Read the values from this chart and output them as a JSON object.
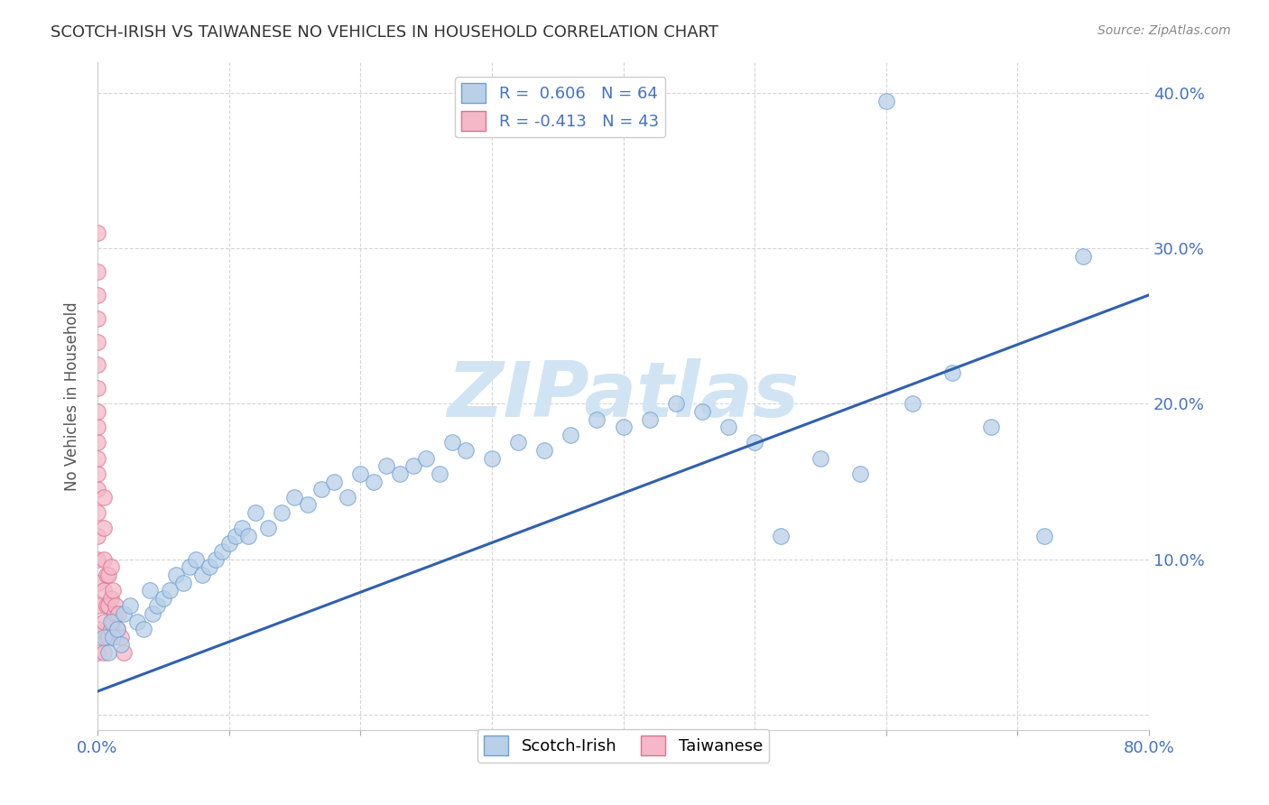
{
  "title": "SCOTCH-IRISH VS TAIWANESE NO VEHICLES IN HOUSEHOLD CORRELATION CHART",
  "source": "Source: ZipAtlas.com",
  "ylabel": "No Vehicles in Household",
  "xlim": [
    0.0,
    0.8
  ],
  "ylim": [
    -0.01,
    0.42
  ],
  "scotch_irish_r": 0.606,
  "scotch_irish_n": 64,
  "taiwanese_r": -0.413,
  "taiwanese_n": 43,
  "scotch_irish_color": "#b8d0e8",
  "scotch_irish_edge": "#6fa0d0",
  "taiwanese_color": "#f4b8c8",
  "taiwanese_edge": "#e07090",
  "trend_line_color": "#3060b0",
  "background_color": "#ffffff",
  "grid_color": "#cccccc",
  "tick_label_color": "#4472c4",
  "title_color": "#333333",
  "source_color": "#888888",
  "watermark_color": "#d0e4f4",
  "trend_x0": 0.0,
  "trend_y0": 0.015,
  "trend_x1": 0.8,
  "trend_y1": 0.27,
  "scotch_irish_x": [
    0.005,
    0.008,
    0.01,
    0.012,
    0.015,
    0.018,
    0.02,
    0.025,
    0.03,
    0.035,
    0.04,
    0.042,
    0.045,
    0.05,
    0.055,
    0.06,
    0.065,
    0.07,
    0.075,
    0.08,
    0.085,
    0.09,
    0.095,
    0.1,
    0.105,
    0.11,
    0.115,
    0.12,
    0.13,
    0.14,
    0.15,
    0.16,
    0.17,
    0.18,
    0.19,
    0.2,
    0.21,
    0.22,
    0.23,
    0.24,
    0.25,
    0.26,
    0.27,
    0.28,
    0.3,
    0.32,
    0.34,
    0.36,
    0.38,
    0.4,
    0.42,
    0.44,
    0.46,
    0.48,
    0.5,
    0.52,
    0.55,
    0.58,
    0.62,
    0.65,
    0.68,
    0.72,
    0.75,
    0.6
  ],
  "scotch_irish_y": [
    0.05,
    0.04,
    0.06,
    0.05,
    0.055,
    0.045,
    0.065,
    0.07,
    0.06,
    0.055,
    0.08,
    0.065,
    0.07,
    0.075,
    0.08,
    0.09,
    0.085,
    0.095,
    0.1,
    0.09,
    0.095,
    0.1,
    0.105,
    0.11,
    0.115,
    0.12,
    0.115,
    0.13,
    0.12,
    0.13,
    0.14,
    0.135,
    0.145,
    0.15,
    0.14,
    0.155,
    0.15,
    0.16,
    0.155,
    0.16,
    0.165,
    0.155,
    0.175,
    0.17,
    0.165,
    0.175,
    0.17,
    0.18,
    0.19,
    0.185,
    0.19,
    0.2,
    0.195,
    0.185,
    0.175,
    0.115,
    0.165,
    0.155,
    0.2,
    0.22,
    0.185,
    0.115,
    0.295,
    0.395
  ],
  "taiwanese_x": [
    0.0,
    0.0,
    0.0,
    0.0,
    0.0,
    0.0,
    0.0,
    0.0,
    0.0,
    0.0,
    0.0,
    0.0,
    0.0,
    0.0,
    0.0,
    0.0,
    0.0,
    0.0,
    0.0,
    0.0,
    0.005,
    0.005,
    0.005,
    0.005,
    0.005,
    0.005,
    0.007,
    0.007,
    0.007,
    0.008,
    0.008,
    0.008,
    0.01,
    0.01,
    0.01,
    0.012,
    0.012,
    0.013,
    0.014,
    0.015,
    0.016,
    0.018,
    0.02
  ],
  "taiwanese_y": [
    0.04,
    0.055,
    0.07,
    0.085,
    0.1,
    0.115,
    0.13,
    0.145,
    0.155,
    0.165,
    0.175,
    0.185,
    0.195,
    0.21,
    0.225,
    0.24,
    0.255,
    0.27,
    0.285,
    0.31,
    0.04,
    0.06,
    0.08,
    0.1,
    0.12,
    0.14,
    0.05,
    0.07,
    0.09,
    0.05,
    0.07,
    0.09,
    0.055,
    0.075,
    0.095,
    0.06,
    0.08,
    0.065,
    0.07,
    0.055,
    0.065,
    0.05,
    0.04
  ]
}
